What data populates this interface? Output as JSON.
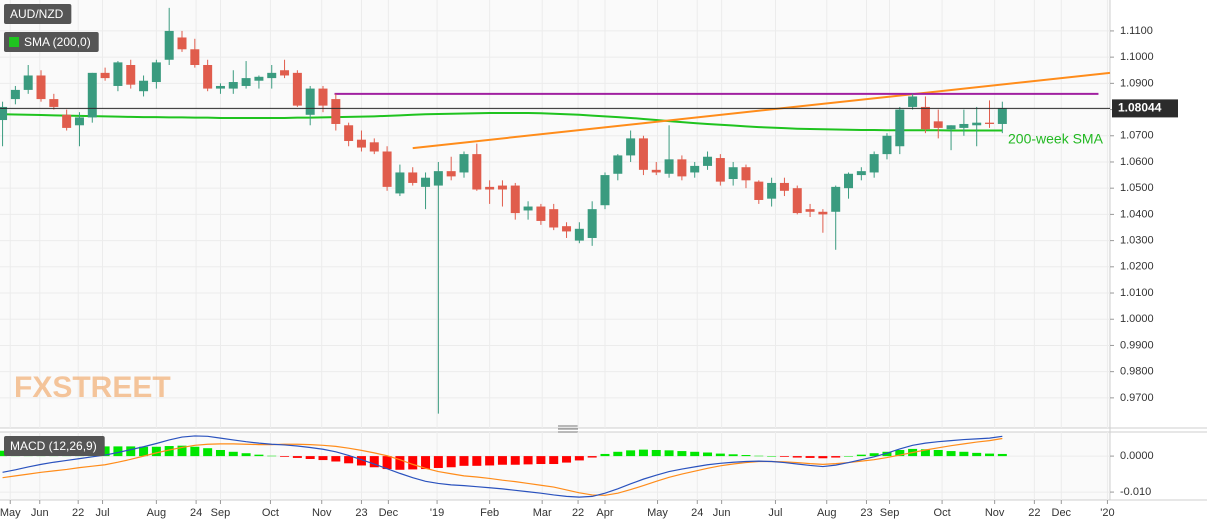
{
  "chart_data": [
    {
      "type": "candlestick",
      "title": "AUD/NZD",
      "x": [
        0,
        1,
        2,
        3,
        4,
        5,
        6,
        7,
        8,
        9,
        10,
        11,
        12,
        13,
        14,
        15,
        16,
        17,
        18,
        19,
        20,
        21,
        22,
        23,
        24,
        25,
        26,
        27,
        28,
        29,
        30,
        31,
        32,
        33,
        34,
        35,
        36,
        37,
        38,
        39,
        40,
        41,
        42,
        43,
        44,
        45,
        46,
        47,
        48,
        49,
        50,
        51,
        52,
        53,
        54,
        55,
        56,
        57,
        58,
        59,
        60,
        61,
        62,
        63,
        64,
        65,
        66,
        67,
        68,
        69,
        70,
        71,
        72,
        73,
        74,
        75,
        76,
        77,
        78
      ],
      "open": [
        1.076,
        1.084,
        1.0875,
        1.093,
        1.084,
        1.078,
        1.074,
        1.077,
        1.094,
        1.089,
        1.097,
        1.087,
        1.0905,
        1.099,
        1.1075,
        1.103,
        1.097,
        1.088,
        1.088,
        1.089,
        1.091,
        1.092,
        1.095,
        1.094,
        1.078,
        1.088,
        1.084,
        1.074,
        1.0685,
        1.0675,
        1.064,
        1.048,
        1.056,
        1.0505,
        1.051,
        1.0565,
        1.056,
        1.063,
        1.0505,
        1.051,
        1.051,
        1.0415,
        1.043,
        1.042,
        1.0355,
        1.03,
        1.031,
        1.0435,
        1.0555,
        1.0625,
        1.069,
        1.057,
        1.0555,
        1.061,
        1.056,
        1.0585,
        1.0615,
        1.0535,
        1.058,
        1.0525,
        1.046,
        1.052,
        1.05,
        1.042,
        1.041,
        1.041,
        1.05,
        1.055,
        1.056,
        1.063,
        1.066,
        1.081,
        1.081,
        1.0755,
        1.0725,
        1.073,
        1.074,
        1.075,
        1.0745
      ],
      "high": [
        1.083,
        1.089,
        1.097,
        1.095,
        1.086,
        1.08,
        1.079,
        1.094,
        1.096,
        1.0985,
        1.099,
        1.093,
        1.099,
        1.1188,
        1.11,
        1.107,
        1.099,
        1.09,
        1.095,
        1.0985,
        1.093,
        1.097,
        1.099,
        1.095,
        1.089,
        1.089,
        1.086,
        1.075,
        1.072,
        1.069,
        1.066,
        1.059,
        1.058,
        1.056,
        1.06,
        1.062,
        1.064,
        1.067,
        1.053,
        1.053,
        1.052,
        1.045,
        1.044,
        1.044,
        1.037,
        1.037,
        1.045,
        1.056,
        1.063,
        1.072,
        1.07,
        1.06,
        1.074,
        1.0625,
        1.06,
        1.064,
        1.063,
        1.06,
        1.059,
        1.053,
        1.054,
        1.054,
        1.051,
        1.044,
        1.042,
        1.051,
        1.056,
        1.058,
        1.064,
        1.071,
        1.081,
        1.086,
        1.085,
        1.08,
        1.074,
        1.08,
        1.081,
        1.0835,
        1.083
      ],
      "low": [
        1.066,
        1.082,
        1.086,
        1.083,
        1.08,
        1.072,
        1.066,
        1.075,
        1.091,
        1.087,
        1.088,
        1.085,
        1.088,
        1.097,
        1.102,
        1.096,
        1.087,
        1.086,
        1.086,
        1.088,
        1.088,
        1.088,
        1.092,
        1.081,
        1.074,
        1.079,
        1.072,
        1.066,
        1.064,
        1.063,
        1.049,
        1.047,
        1.051,
        1.042,
        0.964,
        1.053,
        1.054,
        1.049,
        1.044,
        1.043,
        1.038,
        1.038,
        1.036,
        1.034,
        1.031,
        1.029,
        1.028,
        1.042,
        1.053,
        1.06,
        1.055,
        1.055,
        1.054,
        1.053,
        1.054,
        1.057,
        1.051,
        1.051,
        1.05,
        1.044,
        1.043,
        1.047,
        1.04,
        1.039,
        1.033,
        1.0265,
        1.046,
        1.053,
        1.054,
        1.061,
        1.063,
        1.08,
        1.071,
        1.069,
        1.0645,
        1.07,
        1.066,
        1.073,
        1.071
      ],
      "close": [
        1.081,
        1.0875,
        1.093,
        1.084,
        1.081,
        1.073,
        1.077,
        1.094,
        1.092,
        1.098,
        1.0895,
        1.091,
        1.098,
        1.11,
        1.103,
        1.097,
        1.088,
        1.089,
        1.0905,
        1.092,
        1.0925,
        1.094,
        1.093,
        1.0815,
        1.088,
        1.0815,
        1.0745,
        1.068,
        1.0655,
        1.064,
        1.0505,
        1.056,
        1.052,
        1.054,
        1.0565,
        1.0545,
        1.063,
        1.0495,
        1.0495,
        1.0495,
        1.0405,
        1.043,
        1.0375,
        1.035,
        1.0335,
        1.0345,
        1.042,
        1.055,
        1.0625,
        1.069,
        1.057,
        1.056,
        1.061,
        1.0545,
        1.0585,
        1.062,
        1.0525,
        1.058,
        1.053,
        1.0455,
        1.052,
        1.049,
        1.0405,
        1.041,
        1.04,
        1.0505,
        1.0555,
        1.0565,
        1.063,
        1.07,
        1.08,
        1.085,
        1.0725,
        1.073,
        1.074,
        1.0745,
        1.075,
        1.0745,
        1.08044
      ],
      "up_color": "#3a9b7f",
      "down_color": "#e05c4c",
      "series": [
        {
          "name": "SMA (200,0)",
          "color": "#1fc31f",
          "values": [
            1.0782,
            1.0781,
            1.078,
            1.0779,
            1.0778,
            1.0777,
            1.0776,
            1.0775,
            1.0774,
            1.0773,
            1.0772,
            1.0771,
            1.0771,
            1.077,
            1.077,
            1.0769,
            1.0769,
            1.0768,
            1.0768,
            1.0768,
            1.0768,
            1.0768,
            1.0768,
            1.0769,
            1.0769,
            1.077,
            1.0771,
            1.0772,
            1.0773,
            1.0774,
            1.0776,
            1.0778,
            1.078,
            1.0782,
            1.0783,
            1.0784,
            1.0785,
            1.0786,
            1.0787,
            1.0787,
            1.0787,
            1.0787,
            1.0786,
            1.0784,
            1.0782,
            1.078,
            1.0777,
            1.0774,
            1.0771,
            1.0768,
            1.0764,
            1.076,
            1.0756,
            1.0752,
            1.0748,
            1.0745,
            1.0742,
            1.0739,
            1.0736,
            1.0733,
            1.0731,
            1.0729,
            1.0727,
            1.0726,
            1.0725,
            1.0724,
            1.0723,
            1.0722,
            1.0722,
            1.0721,
            1.0721,
            1.0721,
            1.0721,
            1.0721,
            1.072,
            1.072,
            1.072,
            1.072,
            1.072
          ]
        }
      ],
      "trendlines": [
        {
          "color": "#ff8c1a",
          "x": [
            32.0,
            86.4
          ],
          "values": [
            1.0653,
            1.094
          ]
        },
        {
          "color": "#a020a0",
          "x": [
            25.9,
            85.5
          ],
          "values": [
            1.086,
            1.086
          ]
        }
      ],
      "last_price": 1.08044,
      "annotation": "200-week SMA",
      "watermark": "FXSTREET",
      "xlim": [
        -0.2,
        86.4
      ],
      "ylim": [
        0.9585,
        1.1218
      ],
      "yticks": [
        {
          "value": 1.11,
          "label": "1.1100"
        },
        {
          "value": 1.1,
          "label": "1.1000"
        },
        {
          "value": 1.09,
          "label": "1.0900"
        },
        {
          "value": 1.08,
          "label": "1.0800"
        },
        {
          "value": 1.07,
          "label": "1.0700"
        },
        {
          "value": 1.06,
          "label": "1.0600"
        },
        {
          "value": 1.05,
          "label": "1.0500"
        },
        {
          "value": 1.04,
          "label": "1.0400"
        },
        {
          "value": 1.03,
          "label": "1.0300"
        },
        {
          "value": 1.02,
          "label": "1.0200"
        },
        {
          "value": 1.01,
          "label": "1.0100"
        },
        {
          "value": 1.0,
          "label": "1.0000"
        },
        {
          "value": 0.99,
          "label": "0.9900"
        },
        {
          "value": 0.98,
          "label": "0.9800"
        },
        {
          "value": 0.97,
          "label": "0.9700"
        }
      ],
      "grid": true
    },
    {
      "type": "macd",
      "title": "MACD (12,26,9)",
      "x": [
        0,
        1,
        2,
        3,
        4,
        5,
        6,
        7,
        8,
        9,
        10,
        11,
        12,
        13,
        14,
        15,
        16,
        17,
        18,
        19,
        20,
        21,
        22,
        23,
        24,
        25,
        26,
        27,
        28,
        29,
        30,
        31,
        32,
        33,
        34,
        35,
        36,
        37,
        38,
        39,
        40,
        41,
        42,
        43,
        44,
        45,
        46,
        47,
        48,
        49,
        50,
        51,
        52,
        53,
        54,
        55,
        56,
        57,
        58,
        59,
        60,
        61,
        62,
        63,
        64,
        65,
        66,
        67,
        68,
        69,
        70,
        71,
        72,
        73,
        74,
        75,
        76,
        77,
        78
      ],
      "histogram": [
        0.0015,
        0.0017,
        0.002,
        0.0022,
        0.0024,
        0.0025,
        0.0025,
        0.0026,
        0.0027,
        0.0027,
        0.0027,
        0.0026,
        0.0026,
        0.0028,
        0.0029,
        0.0026,
        0.0022,
        0.0017,
        0.0012,
        0.0008,
        0.0004,
        0.0001,
        -0.0002,
        -0.0005,
        -0.0008,
        -0.0011,
        -0.0015,
        -0.002,
        -0.0026,
        -0.0031,
        -0.0036,
        -0.0038,
        -0.0037,
        -0.0036,
        -0.0033,
        -0.0031,
        -0.0027,
        -0.0027,
        -0.0026,
        -0.0024,
        -0.0024,
        -0.0023,
        -0.0022,
        -0.0022,
        -0.0018,
        -0.0012,
        -0.0004,
        0.0006,
        0.0012,
        0.0016,
        0.0018,
        0.0017,
        0.0016,
        0.0014,
        0.0012,
        0.001,
        0.0007,
        0.0005,
        0.0003,
        0.0001,
        0.0,
        -0.0002,
        -0.0004,
        -0.0005,
        -0.0006,
        -0.0004,
        0.0,
        0.0004,
        0.0008,
        0.0012,
        0.0017,
        0.002,
        0.0019,
        0.0017,
        0.0014,
        0.0012,
        0.0009,
        0.0007,
        0.0006
      ],
      "positive_color": "#00e600",
      "negative_color": "#ff0000",
      "macd": {
        "color": "#2a52be",
        "values": [
          -0.0045,
          -0.0038,
          -0.003,
          -0.0023,
          -0.0017,
          -0.0012,
          -0.0007,
          -0.0002,
          0.0003,
          0.001,
          0.0018,
          0.0026,
          0.0035,
          0.0045,
          0.0053,
          0.0056,
          0.0055,
          0.005,
          0.0045,
          0.004,
          0.0036,
          0.0033,
          0.0031,
          0.0028,
          0.0024,
          0.0019,
          0.0012,
          0.0002,
          -0.001,
          -0.0022,
          -0.0035,
          -0.0048,
          -0.006,
          -0.007,
          -0.0076,
          -0.008,
          -0.0082,
          -0.0085,
          -0.0088,
          -0.0091,
          -0.0095,
          -0.0099,
          -0.0103,
          -0.0108,
          -0.0112,
          -0.0114,
          -0.0112,
          -0.0103,
          -0.0091,
          -0.0077,
          -0.0064,
          -0.0053,
          -0.0043,
          -0.0036,
          -0.003,
          -0.0024,
          -0.002,
          -0.0017,
          -0.0015,
          -0.0014,
          -0.0015,
          -0.0018,
          -0.0022,
          -0.0026,
          -0.0029,
          -0.0025,
          -0.0018,
          -0.001,
          -0.0002,
          0.0008,
          0.002,
          0.003,
          0.0036,
          0.004,
          0.0043,
          0.0046,
          0.0048,
          0.005,
          0.0055
        ]
      },
      "signal": {
        "color": "#ff8c1a",
        "values": [
          -0.006,
          -0.0055,
          -0.005,
          -0.0045,
          -0.0041,
          -0.0037,
          -0.0032,
          -0.0028,
          -0.0024,
          -0.0017,
          -0.0009,
          0.0,
          0.0009,
          0.0017,
          0.0024,
          0.003,
          0.0033,
          0.0034,
          0.0034,
          0.0033,
          0.0032,
          0.0032,
          0.0033,
          0.0033,
          0.0032,
          0.003,
          0.0027,
          0.0022,
          0.0016,
          0.0009,
          0.0001,
          -0.001,
          -0.0023,
          -0.0034,
          -0.0043,
          -0.0049,
          -0.0055,
          -0.0058,
          -0.0062,
          -0.0067,
          -0.0071,
          -0.0076,
          -0.0081,
          -0.0086,
          -0.0094,
          -0.0102,
          -0.0108,
          -0.0109,
          -0.0103,
          -0.0093,
          -0.0082,
          -0.007,
          -0.0059,
          -0.005,
          -0.0042,
          -0.0034,
          -0.0027,
          -0.0022,
          -0.0018,
          -0.0015,
          -0.0015,
          -0.0016,
          -0.0018,
          -0.0021,
          -0.0023,
          -0.0021,
          -0.0018,
          -0.0014,
          -0.001,
          -0.0004,
          0.0003,
          0.001,
          0.0017,
          0.0023,
          0.0029,
          0.0034,
          0.0039,
          0.0043,
          0.0049
        ]
      },
      "xlim": [
        -0.2,
        86.4
      ],
      "ylim": [
        -0.0122,
        0.0067
      ],
      "yticks": [
        {
          "value": 0,
          "label": "0.0000"
        },
        {
          "value": -0.01,
          "label": "-0.010"
        }
      ],
      "xticks": [
        {
          "value": 0.6,
          "label": "May"
        },
        {
          "value": 2.9,
          "label": "Jun"
        },
        {
          "value": 5.9,
          "label": "22"
        },
        {
          "value": 7.8,
          "label": "Jul"
        },
        {
          "value": 12.0,
          "label": "Aug"
        },
        {
          "value": 15.1,
          "label": "24"
        },
        {
          "value": 17.0,
          "label": "Sep"
        },
        {
          "value": 20.9,
          "label": "Oct"
        },
        {
          "value": 24.9,
          "label": "Nov"
        },
        {
          "value": 28.0,
          "label": "23"
        },
        {
          "value": 30.1,
          "label": "Dec"
        },
        {
          "value": 33.9,
          "label": "'19"
        },
        {
          "value": 38.0,
          "label": "Feb"
        },
        {
          "value": 42.1,
          "label": "Mar"
        },
        {
          "value": 44.9,
          "label": "22"
        },
        {
          "value": 47.0,
          "label": "Apr"
        },
        {
          "value": 51.1,
          "label": "May"
        },
        {
          "value": 54.2,
          "label": "24"
        },
        {
          "value": 56.1,
          "label": "Jun"
        },
        {
          "value": 60.3,
          "label": "Jul"
        },
        {
          "value": 64.3,
          "label": "Aug"
        },
        {
          "value": 67.4,
          "label": "23"
        },
        {
          "value": 69.2,
          "label": "Sep"
        },
        {
          "value": 73.3,
          "label": "Oct"
        },
        {
          "value": 77.4,
          "label": "Nov"
        },
        {
          "value": 80.5,
          "label": "22"
        },
        {
          "value": 82.6,
          "label": "Dec"
        },
        {
          "value": 86.2,
          "label": "'20"
        }
      ],
      "grid": true
    }
  ]
}
